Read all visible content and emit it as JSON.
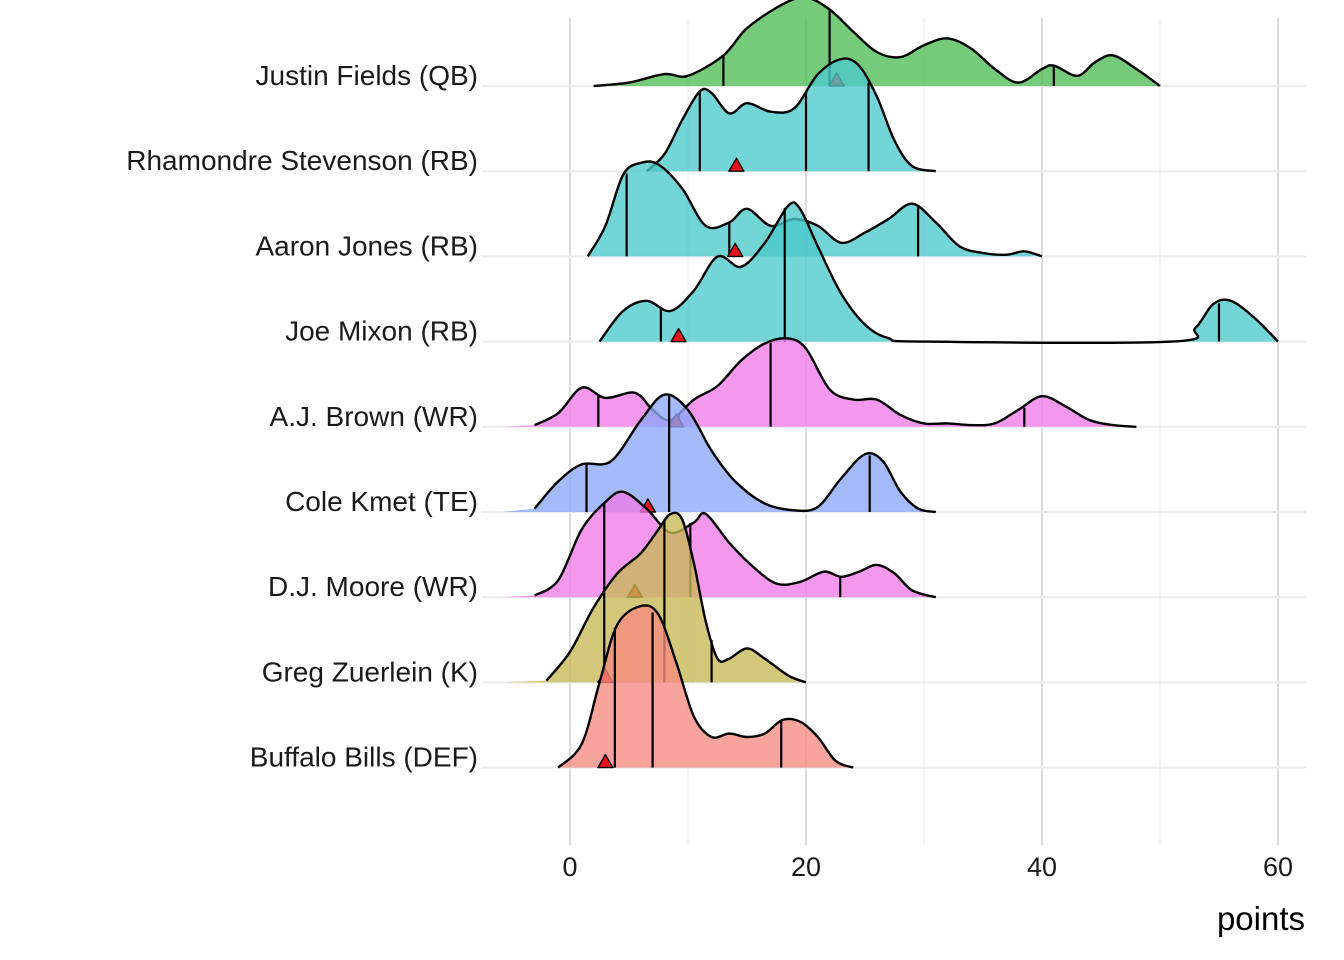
{
  "chart_data": {
    "type": "ridgeline",
    "xlabel": "points",
    "xlim": [
      -6,
      62
    ],
    "x_ticks": [
      0,
      20,
      40,
      60
    ],
    "grid": "vertical major and minor gridlines",
    "marker": "red triangle",
    "series": [
      {
        "name": "Justin Fields (QB)",
        "color": "#4fbd55",
        "quantiles": [
          13,
          22,
          41
        ],
        "marker": 22.6,
        "density": [
          [
            -6,
            0
          ],
          [
            2,
            0
          ],
          [
            5,
            0.02
          ],
          [
            8,
            0.07
          ],
          [
            10,
            0.06
          ],
          [
            13,
            0.18
          ],
          [
            15,
            0.34
          ],
          [
            18,
            0.48
          ],
          [
            20,
            0.52
          ],
          [
            22,
            0.45
          ],
          [
            24,
            0.32
          ],
          [
            26,
            0.2
          ],
          [
            28,
            0.17
          ],
          [
            30,
            0.24
          ],
          [
            32,
            0.28
          ],
          [
            34,
            0.22
          ],
          [
            36,
            0.1
          ],
          [
            38,
            0.02
          ],
          [
            40,
            0.1
          ],
          [
            41,
            0.12
          ],
          [
            43,
            0.06
          ],
          [
            44.5,
            0.14
          ],
          [
            46,
            0.18
          ],
          [
            48,
            0.1
          ],
          [
            50,
            0
          ],
          [
            62,
            0
          ]
        ]
      },
      {
        "name": "Rhamondre Stevenson (RB)",
        "color": "#4cc9ca",
        "quantiles": [
          11,
          20,
          25.3
        ],
        "marker": 14.1,
        "density": [
          [
            -6,
            0
          ],
          [
            6.5,
            0
          ],
          [
            8,
            0.1
          ],
          [
            9.5,
            0.3
          ],
          [
            11,
            0.47
          ],
          [
            12,
            0.46
          ],
          [
            13.5,
            0.34
          ],
          [
            15,
            0.4
          ],
          [
            17,
            0.35
          ],
          [
            19,
            0.37
          ],
          [
            21,
            0.57
          ],
          [
            23,
            0.66
          ],
          [
            24.5,
            0.62
          ],
          [
            26,
            0.44
          ],
          [
            27.5,
            0.18
          ],
          [
            29,
            0.03
          ],
          [
            31,
            0
          ],
          [
            62,
            0
          ]
        ]
      },
      {
        "name": "Aaron Jones (RB)",
        "color": "#4cc9ca",
        "quantiles": [
          4.8,
          13.5,
          29.5
        ],
        "marker": 14,
        "density": [
          [
            -6,
            0
          ],
          [
            1.5,
            0
          ],
          [
            3,
            0.18
          ],
          [
            4.5,
            0.48
          ],
          [
            6,
            0.55
          ],
          [
            7.5,
            0.54
          ],
          [
            9.5,
            0.4
          ],
          [
            11.5,
            0.18
          ],
          [
            13.5,
            0.2
          ],
          [
            15,
            0.28
          ],
          [
            17,
            0.18
          ],
          [
            19,
            0.22
          ],
          [
            21,
            0.18
          ],
          [
            23,
            0.08
          ],
          [
            25,
            0.14
          ],
          [
            27,
            0.22
          ],
          [
            29,
            0.31
          ],
          [
            31,
            0.2
          ],
          [
            33,
            0.06
          ],
          [
            35,
            0.02
          ],
          [
            37,
            0.01
          ],
          [
            38.5,
            0.03
          ],
          [
            40,
            0
          ],
          [
            62,
            0
          ]
        ]
      },
      {
        "name": "Joe Mixon (RB)",
        "color": "#4cc9ca",
        "quantiles": [
          7.7,
          18.2,
          55
        ],
        "marker": 9.2,
        "density": [
          [
            -6,
            0
          ],
          [
            2.5,
            0
          ],
          [
            4.5,
            0.18
          ],
          [
            6.5,
            0.24
          ],
          [
            8.5,
            0.18
          ],
          [
            10.5,
            0.3
          ],
          [
            12.5,
            0.5
          ],
          [
            14.5,
            0.44
          ],
          [
            16.5,
            0.58
          ],
          [
            18.5,
            0.8
          ],
          [
            19.5,
            0.78
          ],
          [
            21,
            0.56
          ],
          [
            23,
            0.28
          ],
          [
            25,
            0.1
          ],
          [
            27,
            0.02
          ],
          [
            30,
            0
          ],
          [
            51,
            0
          ],
          [
            53,
            0.08
          ],
          [
            54.5,
            0.22
          ],
          [
            56,
            0.24
          ],
          [
            58,
            0.14
          ],
          [
            60,
            0
          ],
          [
            62,
            0
          ]
        ]
      },
      {
        "name": "A.J. Brown (WR)",
        "color": "#f17be8",
        "quantiles": [
          2.4,
          9.2,
          17,
          38.5
        ],
        "marker": 9,
        "density": [
          [
            -6,
            0
          ],
          [
            -3,
            0.01
          ],
          [
            -1,
            0.08
          ],
          [
            1,
            0.23
          ],
          [
            3,
            0.17
          ],
          [
            5.5,
            0.2
          ],
          [
            7,
            0.1
          ],
          [
            8.5,
            0.04
          ],
          [
            10.5,
            0.16
          ],
          [
            12.5,
            0.24
          ],
          [
            14.5,
            0.39
          ],
          [
            16.5,
            0.49
          ],
          [
            18.5,
            0.52
          ],
          [
            20,
            0.46
          ],
          [
            22,
            0.22
          ],
          [
            24,
            0.16
          ],
          [
            26,
            0.16
          ],
          [
            28,
            0.07
          ],
          [
            30,
            0.02
          ],
          [
            32,
            0.02
          ],
          [
            34,
            0.01
          ],
          [
            36,
            0.02
          ],
          [
            38,
            0.1
          ],
          [
            40,
            0.18
          ],
          [
            42,
            0.12
          ],
          [
            44,
            0.04
          ],
          [
            46,
            0.01
          ],
          [
            48,
            0
          ],
          [
            62,
            0
          ]
        ]
      },
      {
        "name": "Cole Kmet (TE)",
        "color": "#8aa7f8",
        "quantiles": [
          1.4,
          8.4,
          25.4
        ],
        "marker": 6.6,
        "density": [
          [
            -6,
            0
          ],
          [
            -3,
            0.02
          ],
          [
            -1,
            0.18
          ],
          [
            1,
            0.28
          ],
          [
            3.5,
            0.3
          ],
          [
            6,
            0.54
          ],
          [
            8,
            0.69
          ],
          [
            10,
            0.6
          ],
          [
            12,
            0.36
          ],
          [
            14,
            0.18
          ],
          [
            16.5,
            0.05
          ],
          [
            19,
            0.01
          ],
          [
            21,
            0.03
          ],
          [
            23,
            0.2
          ],
          [
            25,
            0.34
          ],
          [
            26.5,
            0.3
          ],
          [
            28,
            0.12
          ],
          [
            29.5,
            0.02
          ],
          [
            31,
            0
          ],
          [
            62,
            0
          ]
        ]
      },
      {
        "name": "D.J. Moore (WR)",
        "color": "#f17be8",
        "quantiles": [
          2.9,
          10.2,
          22.9
        ],
        "marker": 5.5,
        "density": [
          [
            -6,
            0
          ],
          [
            -3,
            0.01
          ],
          [
            -1,
            0.1
          ],
          [
            1,
            0.4
          ],
          [
            3,
            0.56
          ],
          [
            4.5,
            0.62
          ],
          [
            6.5,
            0.52
          ],
          [
            8.5,
            0.38
          ],
          [
            10.5,
            0.44
          ],
          [
            11.5,
            0.49
          ],
          [
            13.5,
            0.32
          ],
          [
            15.5,
            0.18
          ],
          [
            17.5,
            0.08
          ],
          [
            19.5,
            0.09
          ],
          [
            21.5,
            0.15
          ],
          [
            23,
            0.12
          ],
          [
            24.5,
            0.15
          ],
          [
            26,
            0.19
          ],
          [
            27.5,
            0.14
          ],
          [
            29,
            0.04
          ],
          [
            31,
            0
          ],
          [
            62,
            0
          ]
        ]
      },
      {
        "name": "Greg Zuerlein (K)",
        "color": "#c7b854",
        "quantiles": [
          2.9,
          8,
          12
        ],
        "marker": 3,
        "density": [
          [
            -6,
            0
          ],
          [
            -2,
            0.01
          ],
          [
            0,
            0.18
          ],
          [
            2,
            0.44
          ],
          [
            4,
            0.64
          ],
          [
            6,
            0.76
          ],
          [
            7.5,
            0.9
          ],
          [
            8.5,
            0.99
          ],
          [
            9.5,
            0.96
          ],
          [
            10.5,
            0.7
          ],
          [
            11.5,
            0.36
          ],
          [
            12.5,
            0.14
          ],
          [
            13.5,
            0.14
          ],
          [
            15,
            0.2
          ],
          [
            16.5,
            0.14
          ],
          [
            18.5,
            0.04
          ],
          [
            20,
            0
          ],
          [
            62,
            0
          ]
        ]
      },
      {
        "name": "Buffalo Bills (DEF)",
        "color": "#f68a81",
        "quantiles": [
          3.8,
          7,
          17.9
        ],
        "marker": 3,
        "density": [
          [
            -6,
            0
          ],
          [
            -1,
            0
          ],
          [
            1,
            0.14
          ],
          [
            2.5,
            0.5
          ],
          [
            4,
            0.84
          ],
          [
            6,
            0.95
          ],
          [
            7.5,
            0.9
          ],
          [
            9,
            0.62
          ],
          [
            10.5,
            0.3
          ],
          [
            12,
            0.18
          ],
          [
            13.5,
            0.2
          ],
          [
            15,
            0.18
          ],
          [
            16.5,
            0.2
          ],
          [
            18,
            0.28
          ],
          [
            19.5,
            0.27
          ],
          [
            21,
            0.18
          ],
          [
            22.5,
            0.04
          ],
          [
            24,
            0
          ],
          [
            62,
            0
          ]
        ]
      }
    ]
  }
}
